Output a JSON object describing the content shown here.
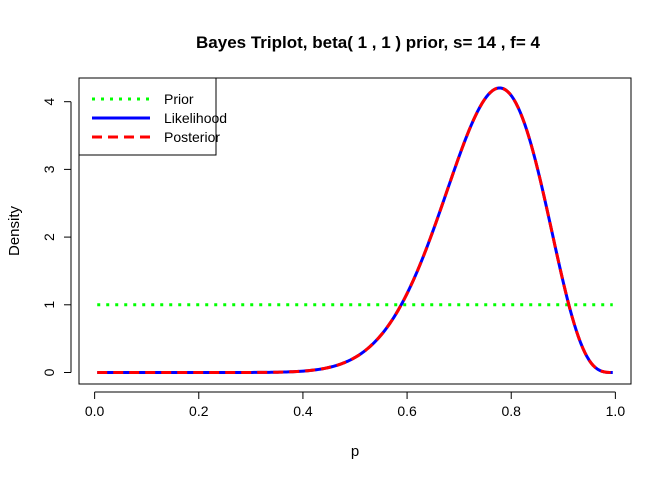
{
  "chart_data": {
    "type": "line",
    "title": "Bayes Triplot, beta( 1 , 1 ) prior, s= 14 , f= 4",
    "xlabel": "p",
    "ylabel": "Density",
    "xlim": [
      -0.03,
      1.03
    ],
    "ylim": [
      -0.17,
      4.35
    ],
    "x_ticks": [
      0,
      0.2,
      0.4,
      0.6,
      0.8,
      1
    ],
    "x_tick_labels": [
      "0.0",
      "0.2",
      "0.4",
      "0.6",
      "0.8",
      "1.0"
    ],
    "y_ticks": [
      0,
      1,
      2,
      3,
      4
    ],
    "y_tick_labels": [
      "0",
      "1",
      "2",
      "3",
      "4"
    ],
    "grid": false,
    "legend_position": "top-left",
    "series": [
      {
        "name": "Prior",
        "color": "#00ff00",
        "style": "dotted",
        "dist": {
          "family": "beta",
          "a": 1,
          "b": 1
        },
        "x_range": [
          0.005,
          0.995
        ]
      },
      {
        "name": "Likelihood",
        "color": "#0000ff",
        "style": "solid",
        "dist": {
          "family": "beta",
          "a": 15,
          "b": 5
        },
        "x_range": [
          0.005,
          0.995
        ]
      },
      {
        "name": "Posterior",
        "color": "#ff0000",
        "style": "dashed",
        "dist": {
          "family": "beta",
          "a": 15,
          "b": 5
        },
        "x_range": [
          0.005,
          0.995
        ]
      }
    ]
  }
}
